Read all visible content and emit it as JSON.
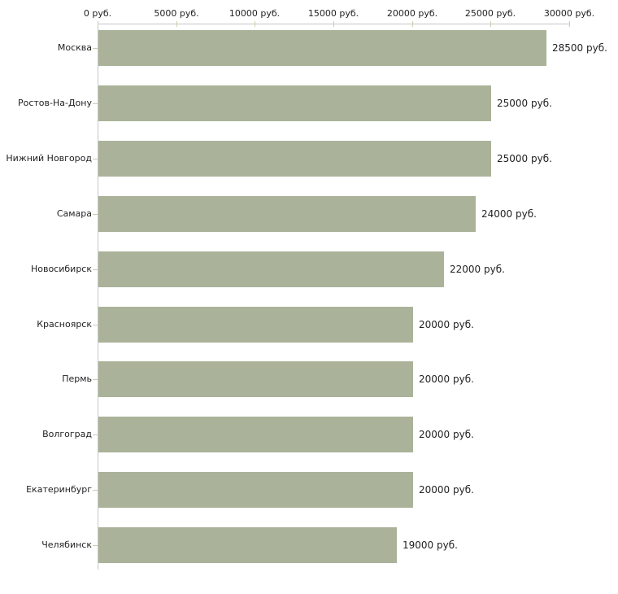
{
  "chart_data": {
    "type": "bar",
    "orientation": "horizontal",
    "title": "",
    "xlabel": "",
    "ylabel": "",
    "unit": "руб.",
    "grid": false,
    "legend": null,
    "categories": [
      "Москва",
      "Ростов-На-Дону",
      "Нижний Новгород",
      "Самара",
      "Новосибирск",
      "Красноярск",
      "Пермь",
      "Волгоград",
      "Екатеринбург",
      "Челябинск"
    ],
    "values": [
      28500,
      25000,
      25000,
      24000,
      22000,
      20000,
      20000,
      20000,
      20000,
      19000
    ],
    "value_labels": [
      "28500 руб.",
      "25000 руб.",
      "25000 руб.",
      "24000 руб.",
      "22000 руб.",
      "20000 руб.",
      "20000 руб.",
      "20000 руб.",
      "20000 руб.",
      "19000 руб."
    ],
    "x_axis": {
      "position": "top",
      "range": [
        0,
        30000
      ],
      "ticks": [
        0,
        5000,
        10000,
        15000,
        20000,
        25000,
        30000
      ],
      "tick_labels": [
        "0 руб.",
        "5000 руб.",
        "10000 руб.",
        "15000 руб.",
        "20000 руб.",
        "25000 руб.",
        "30000 руб."
      ]
    },
    "colors": {
      "bar": "#aab399",
      "axis_line": "#c6c6c6",
      "tick": "#cdcdad",
      "text": "#222222",
      "background": "#ffffff"
    }
  }
}
